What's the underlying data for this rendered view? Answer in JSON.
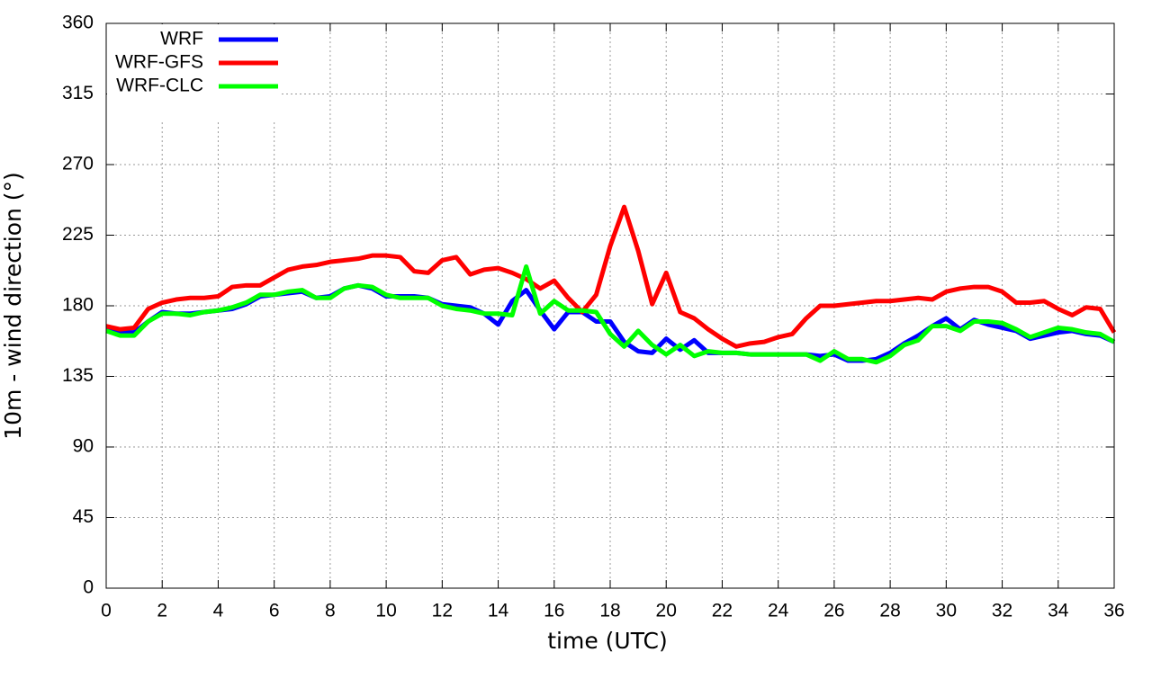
{
  "chart_data": {
    "type": "line",
    "xlabel": "time (UTC)",
    "ylabel": "10m - wind direction (°)",
    "x": [
      0,
      0.5,
      1,
      1.5,
      2,
      2.5,
      3,
      3.5,
      4,
      4.5,
      5,
      5.5,
      6,
      6.5,
      7,
      7.5,
      8,
      8.5,
      9,
      9.5,
      10,
      10.5,
      11,
      11.5,
      12,
      12.5,
      13,
      13.5,
      14,
      14.5,
      15,
      15.5,
      16,
      16.5,
      17,
      17.5,
      18,
      18.5,
      19,
      19.5,
      20,
      20.5,
      21,
      21.5,
      22,
      22.5,
      23,
      23.5,
      24,
      24.5,
      25,
      25.5,
      26,
      26.5,
      27,
      27.5,
      28,
      28.5,
      29,
      29.5,
      30,
      30.5,
      31,
      31.5,
      32,
      32.5,
      33,
      33.5,
      34,
      34.5,
      35,
      35.5,
      36
    ],
    "series": [
      {
        "name": "WRF",
        "color": "#0000ff",
        "values": [
          165,
          163,
          163,
          170,
          176,
          175,
          175,
          176,
          177,
          178,
          181,
          186,
          187,
          188,
          189,
          185,
          186,
          191,
          193,
          191,
          186,
          186,
          186,
          185,
          181,
          180,
          179,
          175,
          168,
          183,
          190,
          177,
          165,
          176,
          176,
          170,
          170,
          157,
          151,
          150,
          159,
          152,
          158,
          150,
          150,
          150,
          149,
          149,
          149,
          149,
          149,
          148,
          149,
          145,
          145,
          146,
          150,
          156,
          161,
          167,
          172,
          165,
          171,
          168,
          166,
          164,
          159,
          161,
          163,
          164,
          162,
          161,
          157
        ]
      },
      {
        "name": "WRF-GFS",
        "color": "#ff0000",
        "values": [
          167,
          165,
          166,
          178,
          182,
          184,
          185,
          185,
          186,
          192,
          193,
          193,
          198,
          203,
          205,
          206,
          208,
          209,
          210,
          212,
          212,
          211,
          202,
          201,
          209,
          211,
          200,
          203,
          204,
          201,
          197,
          191,
          196,
          185,
          176,
          187,
          218,
          243,
          215,
          181,
          201,
          176,
          172,
          165,
          159,
          154,
          156,
          157,
          160,
          162,
          172,
          180,
          180,
          181,
          182,
          183,
          183,
          184,
          185,
          184,
          189,
          191,
          192,
          192,
          189,
          182,
          182,
          183,
          178,
          174,
          179,
          178,
          163
        ]
      },
      {
        "name": "WRF-CLC",
        "color": "#00ff00",
        "values": [
          164,
          161,
          161,
          170,
          175,
          175,
          174,
          176,
          177,
          179,
          182,
          187,
          187,
          189,
          190,
          185,
          185,
          191,
          193,
          192,
          187,
          185,
          185,
          185,
          180,
          178,
          177,
          175,
          175,
          174,
          205,
          175,
          183,
          177,
          177,
          176,
          162,
          154,
          164,
          155,
          149,
          155,
          148,
          151,
          150,
          150,
          149,
          149,
          149,
          149,
          149,
          145,
          151,
          146,
          146,
          144,
          148,
          155,
          158,
          167,
          167,
          164,
          170,
          170,
          169,
          165,
          160,
          163,
          166,
          165,
          163,
          162,
          157
        ]
      }
    ],
    "xlim": [
      0,
      36
    ],
    "xticks": [
      0,
      2,
      4,
      6,
      8,
      10,
      12,
      14,
      16,
      18,
      20,
      22,
      24,
      26,
      28,
      30,
      32,
      34,
      36
    ],
    "ylim": [
      0,
      360
    ],
    "yticks": [
      0,
      45,
      90,
      135,
      180,
      225,
      270,
      315,
      360
    ],
    "grid": true,
    "legend": "upper left"
  }
}
